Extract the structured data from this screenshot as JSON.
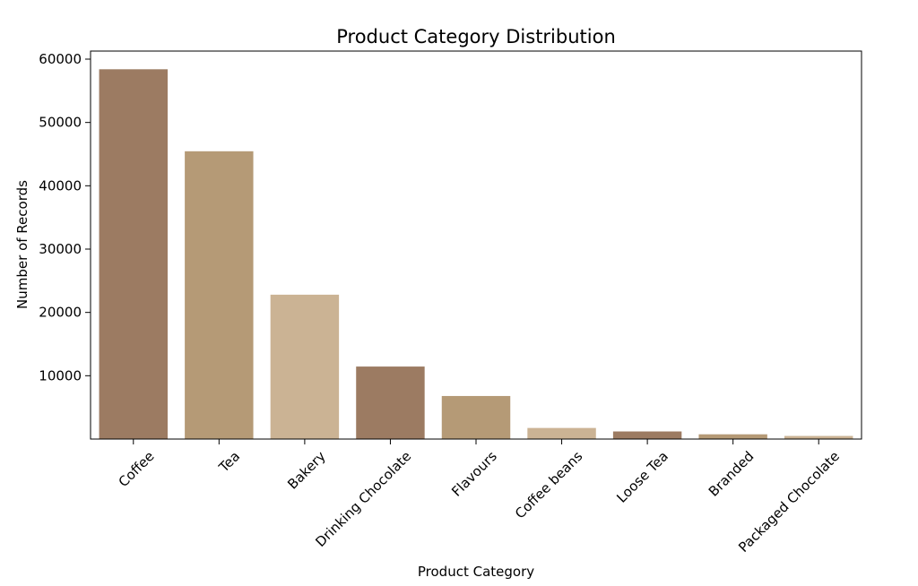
{
  "chart_data": {
    "type": "bar",
    "title": "Product Category Distribution",
    "xlabel": "Product Category",
    "ylabel": "Number of Records",
    "categories": [
      "Coffee",
      "Tea",
      "Bakery",
      "Drinking Chocolate",
      "Flavours",
      "Coffee beans",
      "Loose Tea",
      "Branded",
      "Packaged Chocolate"
    ],
    "values": [
      58400,
      45450,
      22800,
      11450,
      6800,
      1750,
      1200,
      750,
      490
    ],
    "yticks": [
      10000,
      20000,
      30000,
      40000,
      50000,
      60000
    ],
    "ylim": [
      0,
      60000
    ],
    "grid": false,
    "colors": [
      "#9c7b62",
      "#b59a76",
      "#cbb394"
    ]
  }
}
